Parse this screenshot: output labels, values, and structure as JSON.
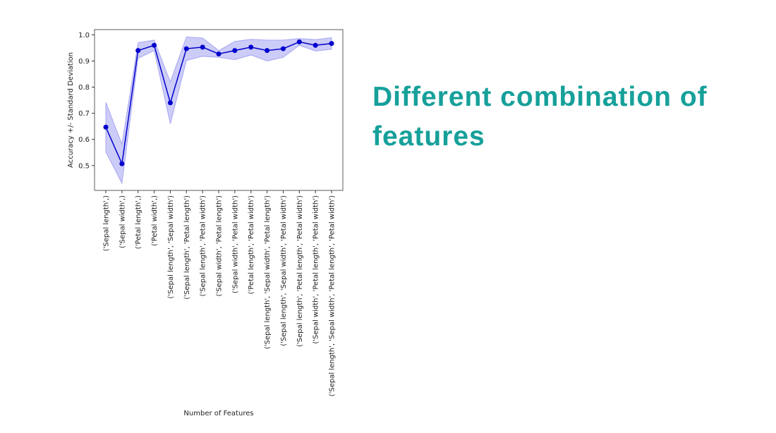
{
  "heading": "Different combination of features",
  "chart_data": {
    "type": "line",
    "ylabel": "Accuracy +/- Standard Deviation",
    "xlabel": "Number of Features",
    "categories": [
      "('Sepal length',)",
      "('Sepal width',)",
      "('Petal length',)",
      "('Petal width',)",
      "('Sepal length', 'Sepal width')",
      "('Sepal length', 'Petal length')",
      "('Sepal length', 'Petal width')",
      "('Sepal width', 'Petal length')",
      "('Sepal width', 'Petal width')",
      "('Petal length', 'Petal width')",
      "('Sepal length', 'Sepal width', 'Petal length')",
      "('Sepal length', 'Sepal width', 'Petal width')",
      "('Sepal length', 'Petal length', 'Petal width')",
      "('Sepal width', 'Petal length', 'Petal width')",
      "('Sepal length', 'Sepal width', 'Petal length', 'Petal width')"
    ],
    "values": [
      0.647,
      0.507,
      0.94,
      0.96,
      0.74,
      0.947,
      0.953,
      0.927,
      0.94,
      0.953,
      0.94,
      0.947,
      0.973,
      0.96,
      0.967
    ],
    "errors": [
      0.095,
      0.075,
      0.03,
      0.02,
      0.08,
      0.045,
      0.035,
      0.013,
      0.035,
      0.03,
      0.04,
      0.033,
      0.013,
      0.022,
      0.022
    ],
    "color": "#0000cc",
    "band_color": "#8080ee",
    "ylim": [
      0.405,
      1.02
    ],
    "yticks": [
      {
        "value": 0.5,
        "label": "0.5"
      },
      {
        "value": 0.6,
        "label": "0.6"
      },
      {
        "value": 0.7,
        "label": "0.7"
      },
      {
        "value": 0.8,
        "label": "0.8"
      },
      {
        "value": 0.9,
        "label": "0.9"
      },
      {
        "value": 1.0,
        "label": "1.0"
      }
    ]
  }
}
